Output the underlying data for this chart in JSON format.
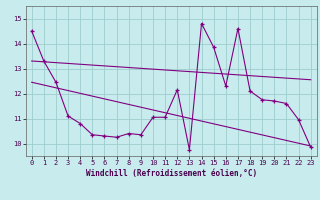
{
  "x": [
    0,
    1,
    2,
    3,
    4,
    5,
    6,
    7,
    8,
    9,
    10,
    11,
    12,
    13,
    14,
    15,
    16,
    17,
    18,
    19,
    20,
    21,
    22,
    23
  ],
  "y_main": [
    14.5,
    13.3,
    12.45,
    11.1,
    10.8,
    10.35,
    10.3,
    10.25,
    10.4,
    10.35,
    11.05,
    11.05,
    12.15,
    9.75,
    14.8,
    13.85,
    12.3,
    14.6,
    12.1,
    11.75,
    11.7,
    11.6,
    10.95,
    9.85
  ],
  "y_upper_start": 13.3,
  "y_upper_end": 12.55,
  "y_lower_start": 12.45,
  "y_lower_end": 9.9,
  "line_color": "#800080",
  "bg_color": "#c8eced",
  "grid_color": "#9ecece",
  "xlabel": "Windchill (Refroidissement éolien,°C)",
  "xlim": [
    -0.5,
    23.5
  ],
  "ylim": [
    9.5,
    15.5
  ],
  "yticks": [
    10,
    11,
    12,
    13,
    14,
    15
  ],
  "xticks": [
    0,
    1,
    2,
    3,
    4,
    5,
    6,
    7,
    8,
    9,
    10,
    11,
    12,
    13,
    14,
    15,
    16,
    17,
    18,
    19,
    20,
    21,
    22,
    23
  ]
}
